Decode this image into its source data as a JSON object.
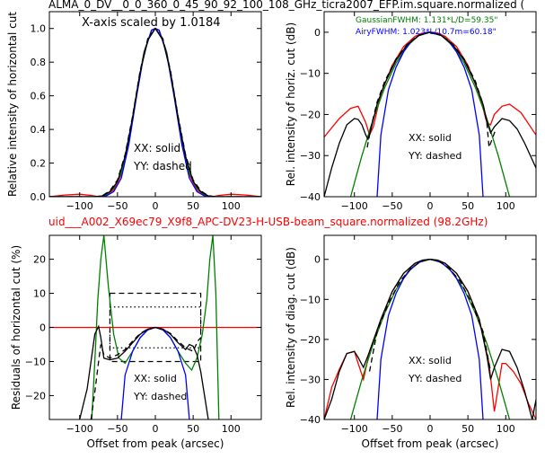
{
  "figure": {
    "title_top": "ALMA_0_DV__0_0_360_0_45_90_92_100_108_GHz_ticra2007_EFP.im.square.normalized (",
    "title_mid": "uid___A002_X69ec79_X9f8_APC-DV23-H-USB-beam_square.normalized (98.2GHz)",
    "colors": {
      "black": "#000000",
      "red": "#ff0000",
      "green": "#008000",
      "blue": "#0000ff",
      "mid_title": "#ff0000"
    }
  },
  "chart_data": [
    {
      "id": "top_left",
      "type": "line",
      "annotation": "X-axis scaled by 1.0184",
      "xlabel": "",
      "ylabel": "Relative intensity of horizontal cut",
      "xlim": [
        -140,
        140
      ],
      "ylim": [
        0.0,
        1.1
      ],
      "xticks": [
        -100,
        -50,
        0,
        50,
        100
      ],
      "yticks": [
        0.0,
        0.2,
        0.4,
        0.6,
        0.8,
        1.0
      ],
      "legend_text": [
        "XX: solid",
        "YY: dashed"
      ],
      "series": [
        {
          "color": "red",
          "style": "solid",
          "x": [
            -140,
            -120,
            -100,
            -85,
            -75,
            -65,
            -55,
            -45,
            -35,
            -25,
            -15,
            -5,
            0,
            5,
            15,
            25,
            35,
            45,
            55,
            65,
            75,
            85,
            100,
            120,
            140
          ],
          "y": [
            0.0,
            0.01,
            0.015,
            0.008,
            0.0,
            0.01,
            0.04,
            0.13,
            0.33,
            0.6,
            0.86,
            0.99,
            1.0,
            0.99,
            0.86,
            0.6,
            0.33,
            0.13,
            0.04,
            0.01,
            0.0,
            0.008,
            0.015,
            0.01,
            0.0
          ]
        },
        {
          "color": "green",
          "style": "solid",
          "x": [
            -140,
            -75,
            -65,
            -55,
            -45,
            -35,
            -25,
            -15,
            -5,
            0,
            5,
            15,
            25,
            35,
            45,
            55,
            65,
            75,
            140
          ],
          "y": [
            0.0,
            0.0,
            0.01,
            0.05,
            0.14,
            0.34,
            0.61,
            0.86,
            0.99,
            1.0,
            0.99,
            0.86,
            0.61,
            0.34,
            0.14,
            0.05,
            0.01,
            0.0,
            0.0
          ]
        },
        {
          "color": "blue",
          "style": "solid",
          "x": [
            -140,
            -75,
            -65,
            -55,
            -45,
            -35,
            -25,
            -15,
            -5,
            0,
            5,
            15,
            25,
            35,
            45,
            55,
            65,
            75,
            140
          ],
          "y": [
            0.0,
            0.0,
            0.005,
            0.03,
            0.11,
            0.31,
            0.59,
            0.85,
            0.99,
            1.0,
            0.99,
            0.85,
            0.59,
            0.31,
            0.11,
            0.03,
            0.005,
            0.0,
            0.0
          ]
        },
        {
          "color": "black",
          "style": "solid",
          "x": [
            -140,
            -80,
            -70,
            -60,
            -50,
            -40,
            -30,
            -20,
            -10,
            0,
            10,
            20,
            30,
            40,
            50,
            60,
            70,
            80,
            140
          ],
          "y": [
            0.0,
            0.0,
            0.005,
            0.03,
            0.09,
            0.24,
            0.47,
            0.74,
            0.93,
            1.0,
            0.93,
            0.74,
            0.47,
            0.24,
            0.09,
            0.03,
            0.005,
            0.0,
            0.0
          ]
        },
        {
          "color": "black",
          "style": "dashed",
          "x": [
            -140,
            -80,
            -70,
            -60,
            -50,
            -40,
            -30,
            -20,
            -10,
            0,
            10,
            20,
            30,
            40,
            50,
            60,
            70,
            80,
            140
          ],
          "y": [
            0.0,
            0.0,
            0.006,
            0.035,
            0.1,
            0.25,
            0.48,
            0.75,
            0.94,
            1.0,
            0.94,
            0.75,
            0.48,
            0.25,
            0.1,
            0.035,
            0.006,
            0.0,
            0.0
          ]
        }
      ]
    },
    {
      "id": "top_right",
      "type": "line",
      "xlabel": "",
      "ylabel": "Rel. intensity of horiz. cut (dB)",
      "xlim": [
        -140,
        140
      ],
      "ylim": [
        -40,
        5
      ],
      "xticks": [
        -100,
        -50,
        0,
        50,
        100
      ],
      "yticks": [
        0,
        -10,
        -20,
        -30,
        -40
      ],
      "annotations": [
        {
          "text": "GaussianFWHM: 1.131*L/D=59.35\"",
          "color": "green"
        },
        {
          "text": "AiryFWHM: 1.023*L/10.7m=60.18\"",
          "color": "blue"
        }
      ],
      "legend_text": [
        "XX: solid",
        "YY: dashed"
      ],
      "series": [
        {
          "color": "red",
          "style": "solid",
          "x": [
            -140,
            -120,
            -105,
            -95,
            -85,
            -80,
            -75,
            -65,
            -50,
            -35,
            -20,
            -10,
            0,
            10,
            20,
            35,
            50,
            65,
            75,
            80,
            85,
            95,
            105,
            120,
            140
          ],
          "y": [
            -25.5,
            -21,
            -18.5,
            -18,
            -22,
            -25,
            -23,
            -15,
            -8,
            -3.5,
            -1,
            -0.2,
            0,
            -0.2,
            -1,
            -3.5,
            -8,
            -15,
            -22,
            -22.5,
            -20,
            -18,
            -17.5,
            -19.5,
            -25
          ]
        },
        {
          "color": "green",
          "style": "solid",
          "x": [
            -105,
            -90,
            -75,
            -60,
            -45,
            -30,
            -15,
            0,
            15,
            30,
            45,
            60,
            75,
            90,
            105
          ],
          "y": [
            -40,
            -30,
            -21,
            -13.5,
            -7.5,
            -3.3,
            -0.8,
            0,
            -0.8,
            -3.3,
            -7.5,
            -13.5,
            -21,
            -30,
            -40
          ]
        },
        {
          "color": "blue",
          "style": "solid",
          "x": [
            -70,
            -65,
            -55,
            -45,
            -35,
            -25,
            -15,
            -5,
            0,
            5,
            15,
            25,
            35,
            45,
            55,
            65,
            70
          ],
          "y": [
            -40,
            -25,
            -14,
            -8.5,
            -4.8,
            -2.3,
            -0.8,
            -0.1,
            0,
            -0.1,
            -0.8,
            -2.3,
            -4.8,
            -8.5,
            -14,
            -25,
            -40
          ]
        },
        {
          "color": "black",
          "style": "solid",
          "x": [
            -140,
            -130,
            -120,
            -110,
            -100,
            -95,
            -90,
            -85,
            -82,
            -78,
            -70,
            -60,
            -45,
            -30,
            -15,
            0,
            15,
            30,
            45,
            60,
            70,
            75,
            80,
            85,
            95,
            105,
            115,
            125,
            140
          ],
          "y": [
            -40,
            -33,
            -27,
            -22.5,
            -21,
            -21.2,
            -22.5,
            -25,
            -26,
            -23.5,
            -17.5,
            -12.5,
            -6.8,
            -3,
            -0.8,
            0,
            -0.8,
            -3,
            -6.8,
            -12.5,
            -17.5,
            -21.5,
            -24.5,
            -23,
            -21,
            -21.5,
            -23.5,
            -27,
            -33
          ]
        },
        {
          "color": "black",
          "style": "dashed",
          "x": [
            -83,
            -78,
            -70,
            -60,
            -45,
            -30,
            -15,
            0,
            15,
            30,
            45,
            60,
            70,
            75,
            78,
            82,
            86
          ],
          "y": [
            -28,
            -23,
            -17,
            -12,
            -6.5,
            -2.9,
            -0.7,
            0,
            -0.7,
            -2.9,
            -6.5,
            -12,
            -17.5,
            -22,
            -28,
            -26,
            -24
          ]
        }
      ]
    },
    {
      "id": "bottom_left",
      "type": "line",
      "xlabel": "Offset from peak (arcsec)",
      "ylabel": "Residuals of horizontal cut (%)",
      "xlim": [
        -140,
        140
      ],
      "ylim": [
        -27,
        27
      ],
      "xticks": [
        -100,
        -50,
        0,
        50,
        100
      ],
      "yticks": [
        20,
        10,
        0,
        -10,
        -20
      ],
      "legend_text": [
        "XX: solid",
        "YY: dashed"
      ],
      "series": [
        {
          "color": "red",
          "style": "solid",
          "x": [
            -140,
            140
          ],
          "y": [
            0,
            0
          ]
        },
        {
          "color": "green",
          "style": "solid",
          "x": [
            -84,
            -80,
            -76,
            -72,
            -68,
            -62,
            -55,
            -48,
            -40,
            -30,
            -20,
            -10,
            0,
            10,
            20,
            30,
            40,
            48,
            55,
            62,
            68,
            72,
            76,
            80,
            84
          ],
          "y": [
            -27,
            -10,
            8,
            20,
            27,
            12,
            -2,
            -9,
            -10.5,
            -7,
            -3,
            -0.7,
            0,
            -0.7,
            -3,
            -7,
            -10.5,
            -12.5,
            -9,
            -2,
            8,
            20,
            27,
            10,
            -27
          ]
        },
        {
          "color": "blue",
          "style": "solid",
          "x": [
            -45,
            -40,
            -30,
            -20,
            -10,
            0,
            10,
            20,
            30,
            40,
            45
          ],
          "y": [
            -27,
            -14,
            -7,
            -3,
            -0.7,
            0,
            -0.7,
            -3,
            -7,
            -14,
            -27
          ]
        },
        {
          "color": "black",
          "style": "solid",
          "x": [
            -100,
            -90,
            -80,
            -75,
            -72,
            -68,
            -60,
            -50,
            -40,
            -30,
            -20,
            -10,
            0,
            10,
            20,
            30,
            40,
            45,
            50,
            55,
            60,
            65,
            70
          ],
          "y": [
            -27,
            -18,
            -2,
            0.3,
            -3,
            -9,
            -9.5,
            -9,
            -7,
            -4.5,
            -2,
            -0.5,
            0,
            -0.5,
            -2,
            -4.5,
            -6.5,
            -5,
            -5.5,
            -8,
            -13,
            -20,
            -27
          ]
        },
        {
          "color": "black",
          "style": "dashed",
          "x": [
            -85,
            -80,
            -75,
            -72,
            -68,
            -60,
            -50,
            -40,
            -30,
            -20,
            -10,
            0,
            10,
            20,
            30,
            40,
            50,
            56,
            60
          ],
          "y": [
            -27,
            -19,
            -10,
            -5,
            -8,
            -9,
            -8,
            -6.5,
            -4,
            -1.8,
            -0.5,
            0,
            -0.5,
            -1.8,
            -4,
            -6,
            -7,
            -4,
            -3
          ]
        }
      ],
      "boxes": [
        {
          "style": "dashed",
          "x": [
            -60,
            60
          ],
          "y": [
            -10,
            10
          ]
        },
        {
          "style": "dotted",
          "x": [
            -60,
            60
          ],
          "y": [
            -6,
            6
          ]
        }
      ]
    },
    {
      "id": "bottom_right",
      "type": "line",
      "xlabel": "Offset from peak (arcsec)",
      "ylabel": "Rel. intensity of diag. cut (dB)",
      "xlim": [
        -140,
        140
      ],
      "ylim": [
        -40,
        6
      ],
      "xticks": [
        -100,
        -50,
        0,
        50,
        100
      ],
      "yticks": [
        0,
        -10,
        -20,
        -30,
        -40
      ],
      "legend_text": [
        "XX: solid",
        "YY: dashed"
      ],
      "series": [
        {
          "color": "red",
          "style": "solid",
          "x": [
            -140,
            -130,
            -120,
            -110,
            -100,
            -95,
            -88,
            -80,
            -65,
            -50,
            -35,
            -20,
            -10,
            0,
            10,
            20,
            35,
            50,
            65,
            78,
            85,
            90,
            95,
            100,
            110,
            120,
            130,
            140
          ],
          "y": [
            -40,
            -32,
            -27.5,
            -23.5,
            -23,
            -26,
            -30,
            -23,
            -15,
            -8,
            -3.5,
            -1,
            -0.2,
            0,
            -0.2,
            -1,
            -3.5,
            -8,
            -15,
            -26,
            -38,
            -32,
            -26,
            -26,
            -28,
            -31,
            -36,
            -40
          ]
        },
        {
          "color": "green",
          "style": "solid",
          "x": [
            -105,
            -90,
            -75,
            -60,
            -45,
            -30,
            -15,
            0,
            15,
            30,
            45,
            60,
            75,
            90,
            105
          ],
          "y": [
            -40,
            -30,
            -21,
            -13.5,
            -7.5,
            -3.3,
            -0.8,
            0,
            -0.8,
            -3.3,
            -7.5,
            -13.5,
            -21,
            -30,
            -40
          ]
        },
        {
          "color": "blue",
          "style": "solid",
          "x": [
            -70,
            -65,
            -55,
            -45,
            -35,
            -25,
            -15,
            -5,
            0,
            5,
            15,
            25,
            35,
            45,
            55,
            65,
            70
          ],
          "y": [
            -40,
            -25,
            -14,
            -8.5,
            -4.8,
            -2.3,
            -0.8,
            -0.1,
            0,
            -0.1,
            -0.8,
            -2.3,
            -4.8,
            -8.5,
            -14,
            -25,
            -40
          ]
        },
        {
          "color": "black",
          "style": "solid",
          "x": [
            -140,
            -130,
            -120,
            -110,
            -100,
            -95,
            -88,
            -80,
            -65,
            -50,
            -35,
            -20,
            -10,
            0,
            10,
            20,
            35,
            50,
            65,
            75,
            80,
            85,
            95,
            105,
            115,
            125,
            135,
            140
          ],
          "y": [
            -40,
            -35,
            -28,
            -23.5,
            -23,
            -24.5,
            -27,
            -23,
            -15,
            -8,
            -3.5,
            -1,
            -0.2,
            0,
            -0.2,
            -1,
            -3.5,
            -8,
            -15,
            -24,
            -30,
            -27,
            -22.5,
            -23,
            -27,
            -33,
            -40,
            -35
          ]
        },
        {
          "color": "black",
          "style": "dashed",
          "x": [
            -80,
            -70,
            -55,
            -40,
            -25,
            -10,
            0,
            10,
            25,
            40,
            55,
            70,
            80
          ],
          "y": [
            -28,
            -18,
            -11,
            -5.5,
            -2.2,
            -0.3,
            0,
            -0.3,
            -2.2,
            -5.5,
            -11,
            -18,
            -28
          ]
        }
      ]
    }
  ]
}
